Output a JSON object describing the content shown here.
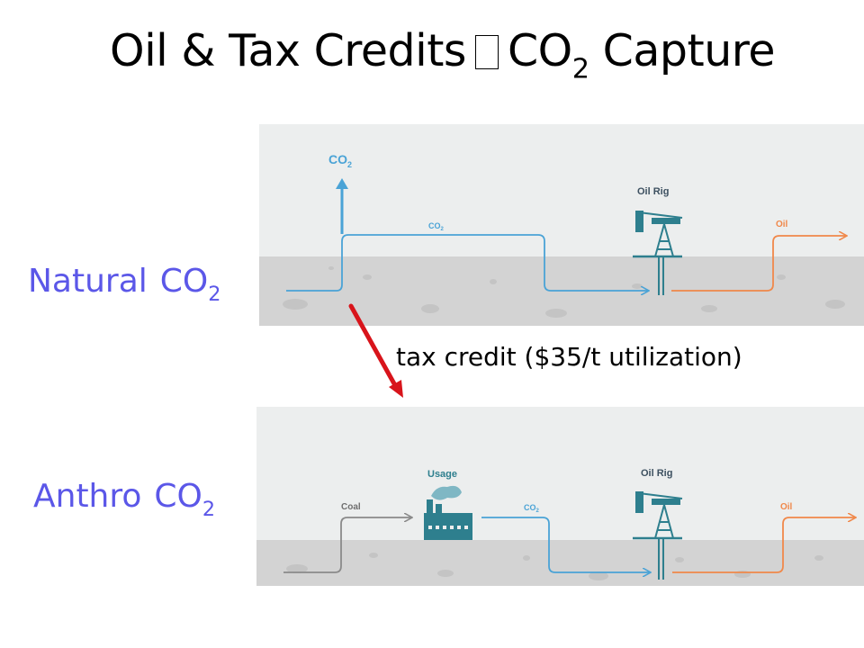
{
  "title": {
    "main": "Oil & Tax Credits",
    "co": "CO",
    "sub": "2",
    "rest": "Capture"
  },
  "labels": {
    "natural": {
      "word": "Natural",
      "co": "CO",
      "sub": "2"
    },
    "anthro": {
      "word": "Anthro",
      "co": "CO",
      "sub": "2"
    }
  },
  "tax_credit_text": "tax credit ($35/t utilization)",
  "natural_diagram": {
    "co2_vent": "CO",
    "co2_vent_sub": "2",
    "co2_pipe": "CO",
    "co2_pipe_sub": "2",
    "oil_rig": "Oil Rig",
    "oil": "Oil"
  },
  "anthro_diagram": {
    "usage": "Usage",
    "coal": "Coal",
    "co2_pipe": "CO",
    "co2_pipe_sub": "2",
    "oil_rig": "Oil Rig",
    "oil": "Oil"
  },
  "colors": {
    "label_blue": "#5b57e8",
    "co2_blue": "#4aa3d6",
    "oil_orange": "#f0884a",
    "coal_gray": "#8a8a8a",
    "ground": "#d3d3d3",
    "sky": "#eceeee",
    "rig_teal": "#2e7f8e",
    "arrow_red": "#d8141b"
  }
}
